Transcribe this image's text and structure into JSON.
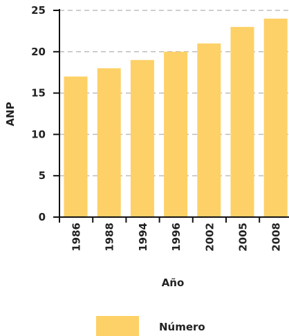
{
  "chart_data": {
    "type": "bar",
    "categories": [
      "1986",
      "1988",
      "1994",
      "1996",
      "2002",
      "2005",
      "2008"
    ],
    "series": [
      {
        "name": "Número",
        "values": [
          17,
          18,
          19,
          20,
          21,
          23,
          24
        ]
      }
    ],
    "ylabel": "ANP",
    "xlabel": "Año",
    "ylim": [
      0,
      25
    ],
    "yticks": [
      "0",
      "5",
      "10",
      "15",
      "20",
      "25"
    ],
    "grid": "horizontal dashed",
    "legend": "bottom-center",
    "colors": {
      "bar": "#FDD167",
      "grid": "#bdbdbd",
      "axis": "#111111"
    }
  }
}
